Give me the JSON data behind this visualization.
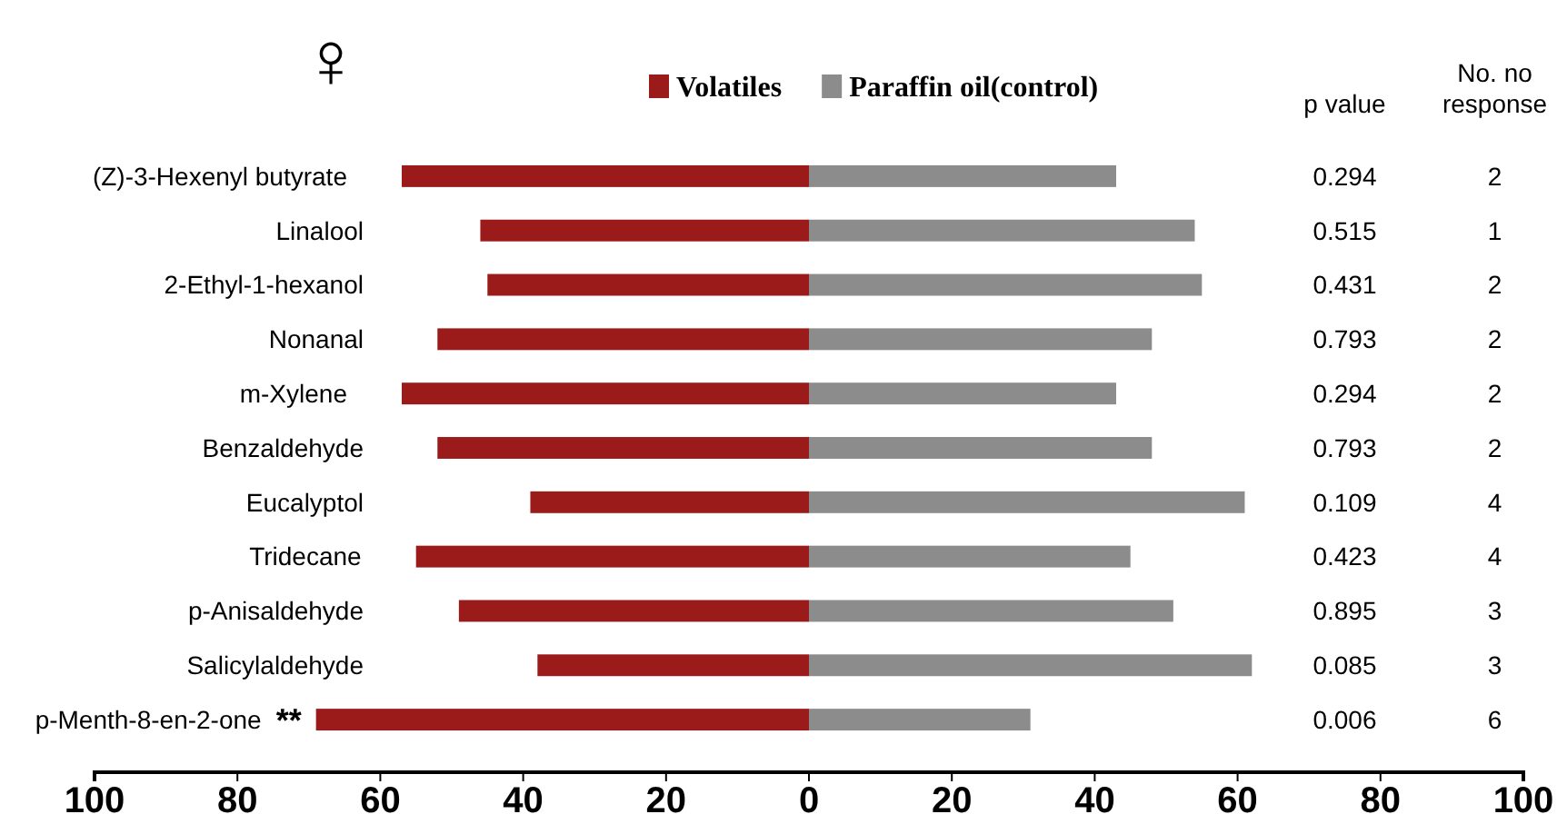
{
  "chart_data": {
    "type": "bar",
    "orientation": "horizontal",
    "stacked": true,
    "legend": "top",
    "categories": [
      "(Z)-3-Hexenyl butyrate",
      "Linalool",
      "2-Ethyl-1-hexanol",
      "Nonanal",
      "m-Xylene",
      "Benzaldehyde",
      "Eucalyptol",
      "Tridecane",
      "p-Anisaldehyde",
      "Salicylaldehyde",
      "p-Menth-8-en-2-one"
    ],
    "series": [
      {
        "name": "Volatiles",
        "color": "#9b1b1b",
        "values": [
          -57,
          -46,
          -45,
          -52,
          -57,
          -52,
          -39,
          -55,
          -49,
          -38,
          -69
        ]
      },
      {
        "name": "Paraffin oil(control)",
        "color": "#8c8c8c",
        "values": [
          43,
          54,
          55,
          48,
          43,
          48,
          61,
          45,
          51,
          62,
          31
        ]
      }
    ],
    "xlim": [
      -100,
      100
    ],
    "xticks": [
      {
        "value": -100,
        "label": "100"
      },
      {
        "value": -80,
        "label": "80"
      },
      {
        "value": -60,
        "label": "60"
      },
      {
        "value": -40,
        "label": "40"
      },
      {
        "value": -20,
        "label": "20"
      },
      0,
      20,
      40,
      60,
      80,
      100
    ],
    "annotations": [
      "♀",
      "p value",
      "No. no response",
      "**",
      "0.294",
      "2",
      "0.515",
      "1",
      "0.431",
      "2",
      "0.793",
      "2",
      "0.294",
      "2",
      "0.793",
      "2",
      "0.109",
      "4",
      "0.423",
      "4",
      "0.895",
      "3",
      "0.085",
      "3",
      "0.006",
      "6"
    ]
  }
}
